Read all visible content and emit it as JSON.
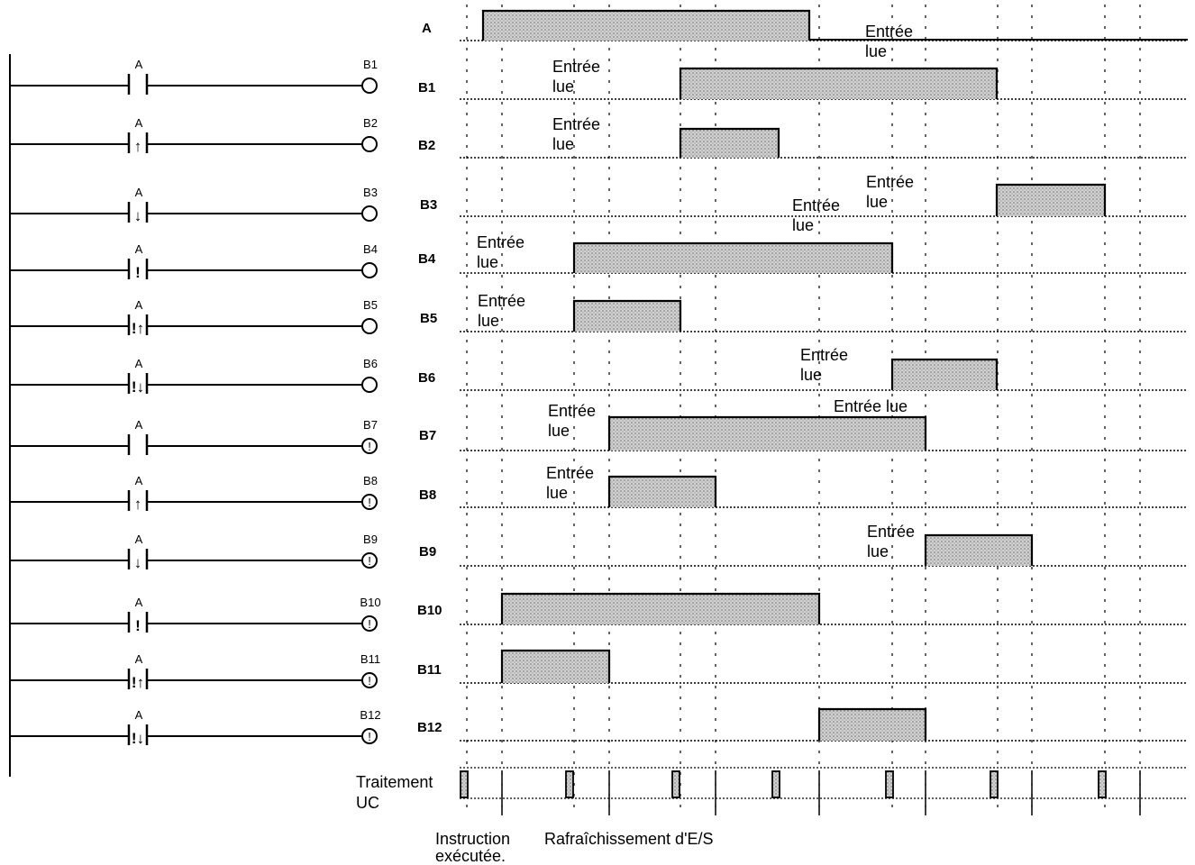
{
  "colors": {
    "line": "#000000",
    "fill": "#c8c8c8",
    "background": "#ffffff"
  },
  "ladder": {
    "contact_label": "A",
    "rungs": [
      {
        "coil": "B1",
        "contact_symbol": "",
        "coil_symbol": ""
      },
      {
        "coil": "B2",
        "contact_symbol": "↑",
        "coil_symbol": ""
      },
      {
        "coil": "B3",
        "contact_symbol": "↓",
        "coil_symbol": ""
      },
      {
        "coil": "B4",
        "contact_symbol": "!",
        "coil_symbol": ""
      },
      {
        "coil": "B5",
        "contact_symbol": "!↑",
        "coil_symbol": ""
      },
      {
        "coil": "B6",
        "contact_symbol": "!↓",
        "coil_symbol": ""
      },
      {
        "coil": "B7",
        "contact_symbol": "",
        "coil_symbol": "!"
      },
      {
        "coil": "B8",
        "contact_symbol": "↑",
        "coil_symbol": "!"
      },
      {
        "coil": "B9",
        "contact_symbol": "↓",
        "coil_symbol": "!"
      },
      {
        "coil": "B10",
        "contact_symbol": "!",
        "coil_symbol": "!"
      },
      {
        "coil": "B11",
        "contact_symbol": "!↑",
        "coil_symbol": "!"
      },
      {
        "coil": "B12",
        "contact_symbol": "!↓",
        "coil_symbol": "!"
      }
    ]
  },
  "timing": {
    "signals": [
      "A",
      "B1",
      "B2",
      "B3",
      "B4",
      "B5",
      "B6",
      "B7",
      "B8",
      "B9",
      "B10",
      "B11",
      "B12"
    ],
    "annotations": [
      {
        "lines": [
          "Entrée",
          "lue"
        ]
      },
      {
        "lines": [
          "Entrée",
          "lue"
        ]
      },
      {
        "lines": [
          "Entrée",
          "lue"
        ]
      },
      {
        "lines": [
          "Entrée",
          "lue"
        ]
      },
      {
        "lines": [
          "Entrée",
          "lue"
        ]
      },
      {
        "lines": [
          "Entrée",
          "lue"
        ]
      },
      {
        "lines": [
          "Entrée",
          "lue"
        ]
      },
      {
        "lines": [
          "Entrée",
          "lue"
        ]
      },
      {
        "lines": [
          "Entrée",
          "lue"
        ]
      },
      {
        "lines": [
          "Entrée",
          "lue"
        ]
      },
      {
        "lines": [
          "Entrée lue"
        ]
      },
      {
        "lines": [
          "Entrée",
          "lue"
        ]
      },
      {
        "lines": [
          "Entrée",
          "lue"
        ]
      }
    ],
    "cpu_label": [
      "Traitement",
      "UC"
    ],
    "instruction_label": [
      "Instruction",
      "exécutée."
    ],
    "refresh_label": "Rafraîchissement d'E/S"
  }
}
